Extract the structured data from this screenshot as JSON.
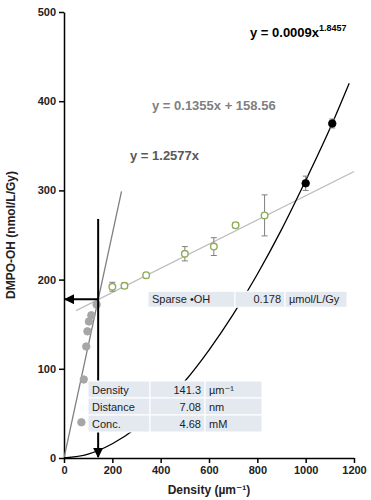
{
  "chart_data": {
    "type": "scatter",
    "x_label": "Density (µm⁻¹)",
    "y_label": "DMPO-OH (nmol/L/Gy)",
    "xlim": [
      0,
      1200
    ],
    "ylim": [
      0,
      500
    ],
    "xticks": [
      0,
      200,
      400,
      600,
      800,
      1000,
      1200
    ],
    "yticks": [
      0,
      100,
      200,
      300,
      400,
      500
    ],
    "grid": false,
    "series": [
      {
        "type": "scatter",
        "color": "#a6a6a6",
        "marker": "circle",
        "x": [
          72,
          82,
          92,
          97,
          103,
          113,
          135
        ],
        "values": [
          40,
          88,
          125,
          142,
          153,
          160,
          172
        ]
      },
      {
        "type": "scatter",
        "color": "#8fad58",
        "marker": "open-circle",
        "x": [
          200,
          250,
          340,
          500,
          620,
          710,
          830
        ],
        "values": [
          192,
          193,
          205,
          229,
          237,
          261,
          272
        ],
        "errors": [
          5,
          3,
          3,
          8,
          10,
          3,
          23
        ]
      },
      {
        "type": "scatter",
        "color": "#000000",
        "marker": "circle",
        "x": [
          1000,
          1110
        ],
        "values": [
          308,
          375
        ],
        "errors": [
          8,
          5
        ]
      },
      {
        "type": "line",
        "color": "#7f7f7f",
        "line_style": "solid",
        "x": [
          0,
          238
        ],
        "values": [
          0,
          299
        ]
      },
      {
        "type": "line",
        "color": "#bfbfbf",
        "line_style": "solid",
        "x": [
          50,
          1200
        ],
        "values": [
          165.3,
          321.2
        ]
      },
      {
        "type": "line",
        "color": "#000000",
        "line_style": "solid",
        "x": [
          0,
          100,
          200,
          300,
          400,
          500,
          600,
          700,
          800,
          900,
          1000,
          1100,
          1180
        ],
        "values": [
          0,
          4.4,
          16,
          33.6,
          57,
          86,
          121,
          161,
          206,
          256,
          311,
          369,
          420
        ]
      }
    ],
    "annotations": [
      {
        "text": "y = 0.0009x",
        "superscript": "1.8457",
        "color": "#000000"
      },
      {
        "text": "y = 0.1355x + 158.56",
        "color": "#808080"
      },
      {
        "text": "y = 1.2577x",
        "color": "#595959"
      }
    ],
    "guide": {
      "x": 141.3,
      "y": 178,
      "y_top": 268
    },
    "sparse": {
      "label": "Sparse •OH",
      "value": 0.178,
      "unit": "µmol/L/Gy"
    },
    "table": [
      {
        "label": "Density",
        "value": 141.3,
        "unit": "µm⁻¹"
      },
      {
        "label": "Distance",
        "value": 7.08,
        "unit": "nm"
      },
      {
        "label": "Conc.",
        "value": 4.68,
        "unit": "mM"
      }
    ]
  }
}
